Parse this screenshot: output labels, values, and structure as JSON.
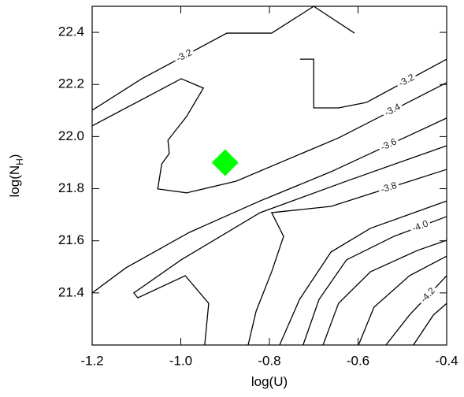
{
  "chart_data": {
    "type": "contour",
    "xlabel": "log(U)",
    "ylabel": {
      "main": "log(N",
      "sub": "H",
      "end": ")"
    },
    "xlim": [
      -1.2,
      -0.4
    ],
    "ylim": [
      21.2,
      22.5
    ],
    "xticks": [
      -1.2,
      {
        "value": -1.0,
        "label": "-1.0"
      },
      -0.8,
      -0.6,
      -0.4
    ],
    "yticks": [
      21.4,
      21.6,
      21.8,
      {
        "value": 22.0,
        "label": "22.0"
      },
      22.2,
      22.4
    ],
    "line_color": "#000000",
    "contours": [
      {
        "label": "-3.2",
        "x": [
          -1.2,
          -1.088,
          -0.896,
          -0.795,
          -0.7,
          -0.608
        ],
        "y": [
          22.101,
          22.222,
          22.397,
          22.397,
          22.5,
          22.397
        ]
      },
      {
        "label": "-3.2",
        "x": [
          -0.731,
          -0.7,
          -0.7,
          -0.644,
          -0.581,
          -0.4
        ],
        "y": [
          22.297,
          22.297,
          22.11,
          22.11,
          22.131,
          22.297
        ]
      },
      {
        "label": "-3.4",
        "x": [
          -1.2,
          -0.999,
          -0.949,
          -0.987,
          -1.029,
          -1.026,
          -1.043,
          -1.052,
          -0.987,
          -0.875,
          -0.644,
          -0.4
        ],
        "y": [
          22.041,
          22.222,
          22.186,
          22.077,
          21.986,
          21.935,
          21.895,
          21.799,
          21.784,
          21.829,
          21.995,
          22.207
        ]
      },
      {
        "label": "-3.6",
        "x": [
          -1.2,
          -1.124,
          -0.981,
          -0.821,
          -0.661,
          -0.4
        ],
        "y": [
          21.4,
          21.496,
          21.632,
          21.753,
          21.865,
          22.071
        ]
      },
      {
        "x": [
          -0.946,
          -0.937,
          -0.99,
          -1.097,
          -1.106,
          -0.999,
          -0.821,
          -0.626,
          -0.4
        ],
        "y": [
          21.2,
          21.36,
          21.466,
          21.381,
          21.4,
          21.527,
          21.708,
          21.829,
          21.965
        ]
      },
      {
        "label": "-3.8",
        "x": [
          -0.848,
          -0.83,
          -0.795,
          -0.768,
          -0.795,
          -0.661,
          -0.4
        ],
        "y": [
          21.2,
          21.33,
          21.481,
          21.617,
          21.708,
          21.732,
          21.874
        ]
      },
      {
        "x": [
          -0.777,
          -0.732,
          -0.661,
          -0.572,
          -0.4
        ],
        "y": [
          21.2,
          21.375,
          21.557,
          21.648,
          21.753
        ]
      },
      {
        "label": "-4.0",
        "x": [
          -0.724,
          -0.688,
          -0.626,
          -0.519,
          -0.4
        ],
        "y": [
          21.2,
          21.375,
          21.527,
          21.617,
          21.693
        ]
      },
      {
        "x": [
          -0.679,
          -0.644,
          -0.572,
          -0.466,
          -0.4
        ],
        "y": [
          21.2,
          21.36,
          21.481,
          21.563,
          21.602
        ]
      },
      {
        "x": [
          -0.599,
          -0.564,
          -0.484,
          -0.4
        ],
        "y": [
          21.2,
          21.345,
          21.466,
          21.541
        ]
      },
      {
        "label": "-4.2",
        "x": [
          -0.537,
          -0.484,
          -0.4
        ],
        "y": [
          21.2,
          21.315,
          21.466
        ]
      },
      {
        "x": [
          -0.475,
          -0.43,
          -0.4
        ],
        "y": [
          21.2,
          21.315,
          21.36
        ]
      }
    ],
    "points": {
      "x": [
        -0.9
      ],
      "y": [
        21.9
      ],
      "color": "#00ff00"
    }
  }
}
